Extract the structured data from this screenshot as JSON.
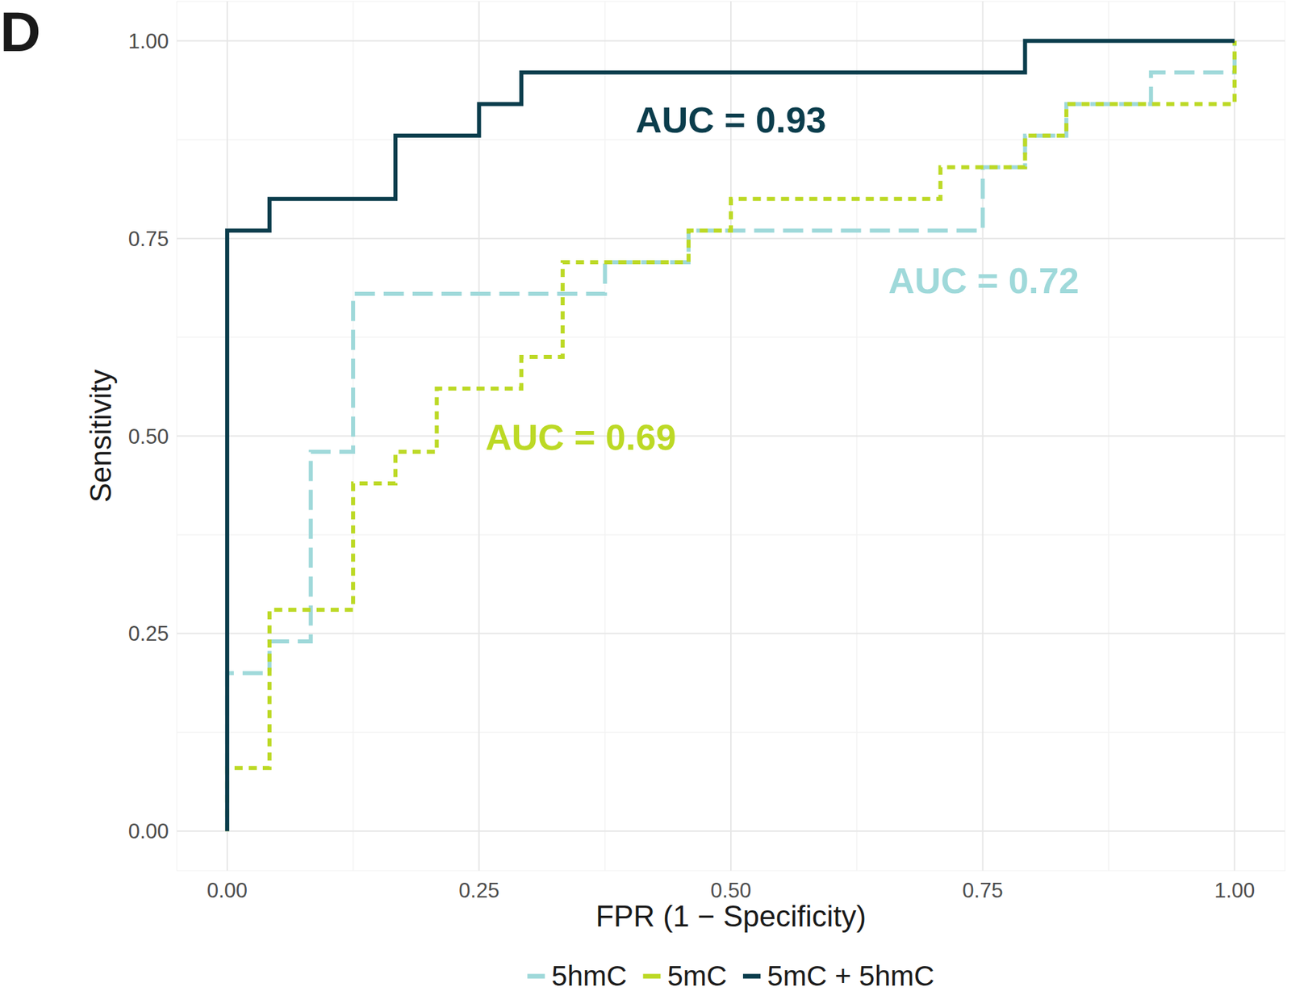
{
  "chart_data": {
    "type": "line",
    "panel_label": "D",
    "x_label": "FPR (1 − Specificity)",
    "y_label": "Sensitivity",
    "xlim": [
      -0.05,
      1.05
    ],
    "ylim": [
      -0.05,
      1.05
    ],
    "xticks": [
      {
        "value": 0,
        "label": "0.00"
      },
      {
        "value": 0.25,
        "label": "0.25"
      },
      {
        "value": 0.5,
        "label": "0.50"
      },
      {
        "value": 0.75,
        "label": "0.75"
      },
      {
        "value": 1,
        "label": "1.00"
      }
    ],
    "yticks": [
      {
        "value": 0,
        "label": "0.00"
      },
      {
        "value": 0.25,
        "label": "0.25"
      },
      {
        "value": 0.5,
        "label": "0.50"
      },
      {
        "value": 0.75,
        "label": "0.75"
      },
      {
        "value": 1,
        "label": "1.00"
      }
    ],
    "grid": true,
    "legend": "bottom",
    "series": [
      {
        "name": "5hmC",
        "color": "#9fd9da",
        "line_style": "dashed",
        "x": [
          0,
          0,
          0.042,
          0.042,
          0.083,
          0.083,
          0.125,
          0.125,
          0.375,
          0.375,
          0.458,
          0.458,
          0.75,
          0.75,
          0.792,
          0.792,
          0.833,
          0.833,
          0.917,
          0.917,
          1,
          1
        ],
        "values": [
          0,
          0.2,
          0.2,
          0.24,
          0.24,
          0.48,
          0.48,
          0.68,
          0.68,
          0.72,
          0.72,
          0.76,
          0.76,
          0.84,
          0.84,
          0.88,
          0.88,
          0.92,
          0.92,
          0.96,
          0.96,
          1
        ]
      },
      {
        "name": "5mC",
        "color": "#bcd925",
        "line_style": "dotted",
        "x": [
          0,
          0,
          0.042,
          0.042,
          0.125,
          0.125,
          0.167,
          0.167,
          0.208,
          0.208,
          0.292,
          0.292,
          0.333,
          0.333,
          0.458,
          0.458,
          0.5,
          0.5,
          0.708,
          0.708,
          0.792,
          0.792,
          0.833,
          0.833,
          1,
          1
        ],
        "values": [
          0,
          0.08,
          0.08,
          0.28,
          0.28,
          0.44,
          0.44,
          0.48,
          0.48,
          0.56,
          0.56,
          0.6,
          0.6,
          0.72,
          0.72,
          0.76,
          0.76,
          0.8,
          0.8,
          0.84,
          0.84,
          0.88,
          0.88,
          0.92,
          0.92,
          1
        ]
      },
      {
        "name": "5mC + 5hmC",
        "color": "#0b3d4c",
        "line_style": "solid",
        "x": [
          0,
          0,
          0.042,
          0.042,
          0.167,
          0.167,
          0.25,
          0.25,
          0.292,
          0.292,
          0.792,
          0.792,
          1
        ],
        "values": [
          0,
          0.76,
          0.76,
          0.8,
          0.8,
          0.88,
          0.88,
          0.92,
          0.92,
          0.96,
          0.96,
          1,
          1
        ]
      }
    ],
    "annotations": [
      {
        "text": "AUC = 0.93",
        "x": 0.5,
        "y": 0.9,
        "color": "#0b3d4c"
      },
      {
        "text": "AUC = 0.72",
        "x": 0.751,
        "y": 0.697,
        "color": "#9fd9da"
      },
      {
        "text": "AUC = 0.69",
        "x": 0.351,
        "y": 0.499,
        "color": "#bcd925"
      }
    ]
  }
}
